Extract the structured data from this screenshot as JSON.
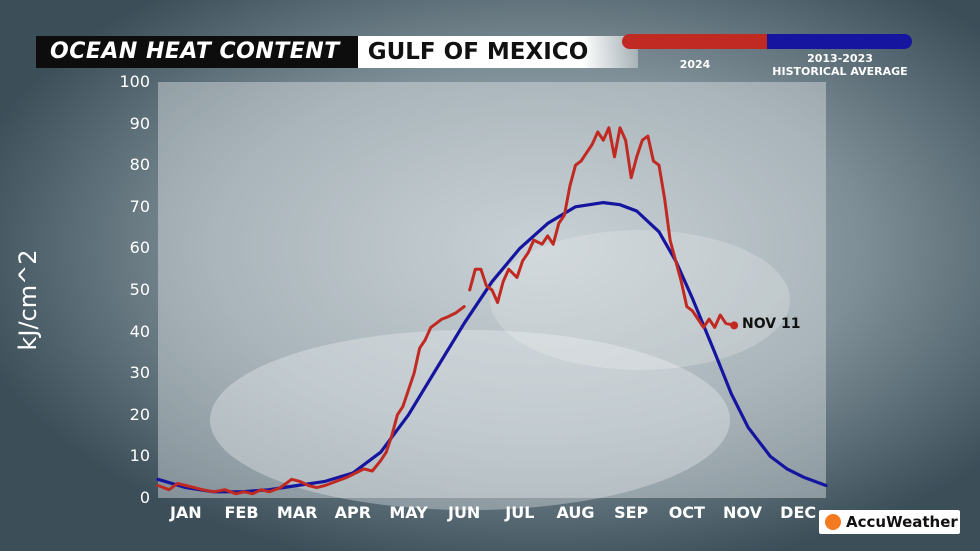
{
  "header": {
    "title": "OCEAN HEAT CONTENT",
    "region": "GULF OF MEXICO"
  },
  "legend": {
    "current_label": "2024",
    "historical_label_line1": "2013-2023",
    "historical_label_line2": "HISTORICAL AVERAGE",
    "current_color": "#c12a22",
    "historical_color": "#1515a0"
  },
  "logo": {
    "text": "AccuWeather",
    "icon": "sun-icon"
  },
  "chart_data": {
    "type": "line",
    "title": "OCEAN HEAT CONTENT GULF OF MEXICO",
    "ylabel": "kJ/cm^2",
    "xlabel": "",
    "ylim": [
      0,
      100
    ],
    "yticks": [
      0,
      10,
      20,
      30,
      40,
      50,
      60,
      70,
      80,
      90,
      100
    ],
    "x_unit": "month (0 = start of JAN, 12 = end of DEC)",
    "xlim": [
      0,
      12
    ],
    "categories": [
      "JAN",
      "FEB",
      "MAR",
      "APR",
      "MAY",
      "JUN",
      "JUL",
      "AUG",
      "SEP",
      "OCT",
      "NOV",
      "DEC"
    ],
    "end_label": "NOV 11",
    "series": [
      {
        "name": "2013-2023 HISTORICAL AVERAGE",
        "color": "#1515a0",
        "x": [
          0,
          0.5,
          1.0,
          1.5,
          2.0,
          2.5,
          3.0,
          3.5,
          4.0,
          4.5,
          5.0,
          5.5,
          6.0,
          6.5,
          7.0,
          7.5,
          8.0,
          8.3,
          8.6,
          9.0,
          9.3,
          9.6,
          10.0,
          10.3,
          10.6,
          11.0,
          11.3,
          11.6,
          12.0
        ],
        "values": [
          4.5,
          2.5,
          1.5,
          1.5,
          2.0,
          3.0,
          4.0,
          6.0,
          11.0,
          20.0,
          31.0,
          42.0,
          52.0,
          60.0,
          66.0,
          70.0,
          71.0,
          70.5,
          69.0,
          64.0,
          57.0,
          48.0,
          35.0,
          25.0,
          17.0,
          10.0,
          7.0,
          5.0,
          3.0
        ]
      },
      {
        "name": "2024",
        "color": "#c12a22",
        "segments": [
          {
            "x": [
              0,
              0.2,
              0.35,
              0.5,
              0.65,
              0.8,
              1.0,
              1.2,
              1.4,
              1.55,
              1.7,
              1.85,
              2.0,
              2.2,
              2.4,
              2.55,
              2.7,
              2.85,
              3.0,
              3.2,
              3.4,
              3.55,
              3.7,
              3.85,
              4.0,
              4.1,
              4.2,
              4.3,
              4.4,
              4.5,
              4.6,
              4.7,
              4.8,
              4.9,
              5.0,
              5.1,
              5.2,
              5.35,
              5.5
            ],
            "values": [
              3.0,
              2.0,
              3.5,
              3.0,
              2.5,
              2.0,
              1.5,
              2.0,
              1.0,
              1.5,
              1.0,
              2.0,
              1.5,
              2.5,
              4.5,
              4.0,
              3.0,
              2.5,
              3.0,
              4.0,
              5.0,
              6.0,
              7.0,
              6.5,
              9.0,
              11.0,
              15.0,
              20.0,
              22.0,
              26.0,
              30.0,
              36.0,
              38.0,
              41.0,
              42.0,
              43.0,
              43.5,
              44.5,
              46.0
            ]
          },
          {
            "x": [
              5.6,
              5.7,
              5.8,
              5.9,
              6.0,
              6.1,
              6.2,
              6.3,
              6.45,
              6.55,
              6.65,
              6.75,
              6.9,
              7.0,
              7.1,
              7.2,
              7.3,
              7.4,
              7.5,
              7.6,
              7.7,
              7.8,
              7.9,
              8.0,
              8.1,
              8.2,
              8.3,
              8.4,
              8.5,
              8.6,
              8.7,
              8.8,
              8.9,
              9.0,
              9.1,
              9.2,
              9.3,
              9.4,
              9.5,
              9.6,
              9.7,
              9.8,
              9.9,
              10.0,
              10.1,
              10.2,
              10.35
            ],
            "values": [
              50.0,
              55.0,
              55.0,
              51.0,
              50.0,
              47.0,
              52.0,
              55.0,
              53.0,
              57.0,
              59.0,
              62.0,
              61.0,
              63.0,
              61.0,
              66.0,
              68.0,
              75.0,
              80.0,
              81.0,
              83.0,
              85.0,
              88.0,
              86.0,
              89.0,
              82.0,
              89.0,
              86.0,
              77.0,
              82.0,
              86.0,
              87.0,
              81.0,
              80.0,
              72.0,
              62.0,
              57.0,
              52.0,
              46.0,
              45.0,
              43.0,
              41.0,
              43.0,
              41.0,
              44.0,
              42.0,
              41.5
            ]
          }
        ]
      }
    ]
  }
}
